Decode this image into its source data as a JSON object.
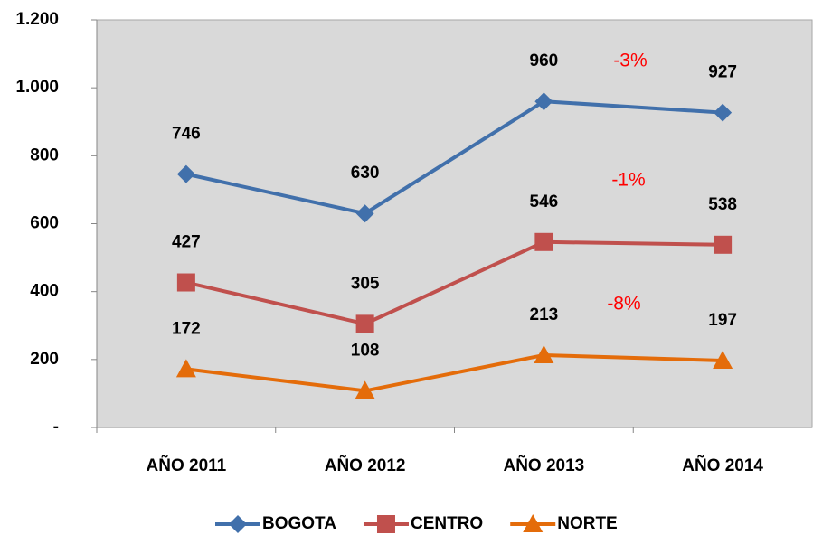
{
  "chart_data": {
    "type": "line",
    "categories": [
      "AÑO 2011",
      "AÑO 2012",
      "AÑO 2013",
      "AÑO 2014"
    ],
    "series": [
      {
        "name": "BOGOTA",
        "color": "#4170ab",
        "marker": "diamond",
        "values": [
          746,
          630,
          960,
          927
        ]
      },
      {
        "name": "CENTRO",
        "color": "#c0504d",
        "marker": "square",
        "values": [
          427,
          305,
          546,
          538
        ]
      },
      {
        "name": "NORTE",
        "color": "#e46c0a",
        "marker": "triangle",
        "values": [
          172,
          108,
          213,
          197
        ]
      }
    ],
    "annotations": [
      "-3%",
      "-1%",
      "-8%"
    ],
    "annotation_color": "#ff0000",
    "ylim": [
      0,
      1200
    ],
    "yticks": [
      {
        "value": 0,
        "label": "-"
      },
      200,
      400,
      600,
      800,
      {
        "value": 1000,
        "label": "1.000"
      },
      {
        "value": 1200,
        "label": "1.200"
      }
    ],
    "grid": false,
    "legend": "bottom"
  }
}
